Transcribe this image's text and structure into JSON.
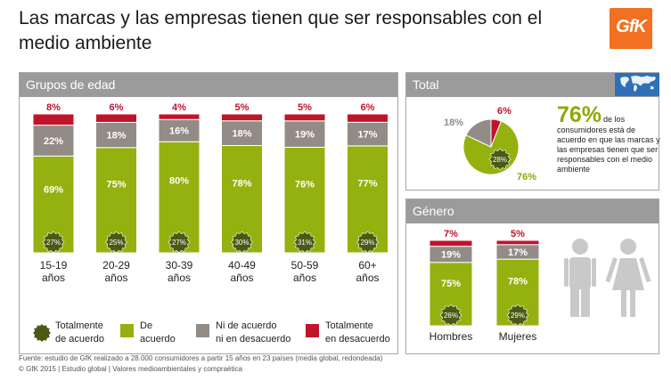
{
  "title": "Las marcas y las empresas tienen que ser responsables con el medio ambiente",
  "logo_text": "GfK",
  "panels": {
    "age": "Grupos de edad",
    "total": "Total",
    "gender": "Género"
  },
  "total_text": {
    "value": "76%",
    "description": "de los consumidores está de acuerdo en que las marcas y las empresas tienen que ser responsables con el medio ambiente"
  },
  "legend": [
    {
      "label": "Totalmente de acuerdo",
      "color": "#4a5a14",
      "shape": "badge"
    },
    {
      "label": "De acuerdo",
      "color": "#95b10f",
      "shape": "square"
    },
    {
      "label": "Ni de acuerdo ni en desacuerdo",
      "color": "#928b86",
      "shape": "square"
    },
    {
      "label": "Totalmente en desacuerdo",
      "color": "#c0142b",
      "shape": "square"
    }
  ],
  "footer": {
    "source": "Fuente: estudio de GfK realizado a 28.000 consumidores a partir 15 años en 23 países (media global, redondeada)",
    "copyright": "© GfK 2015 | Estudio global | Valores medioambientales y compraética"
  },
  "colors": {
    "agree": "#95b10f",
    "neutral": "#928b86",
    "disagree": "#c0142b",
    "strong": "#4a5a14",
    "header": "#9b9b9b",
    "accent": "#8bab06"
  },
  "chart_data": [
    {
      "type": "bar",
      "stacked": true,
      "categories": [
        "15-19 años",
        "20-29 años",
        "30-39 años",
        "40-49 años",
        "50-59 años",
        "60+ años"
      ],
      "series": [
        {
          "name": "De acuerdo",
          "values": [
            69,
            75,
            80,
            78,
            76,
            77
          ],
          "labels": [
            "69%",
            "75%",
            "80%",
            "78%",
            "76%",
            "77%"
          ]
        },
        {
          "name": "Ni de acuerdo ni en desacuerdo",
          "values": [
            22,
            18,
            16,
            18,
            19,
            17
          ],
          "labels": [
            "22%",
            "18%",
            "16%",
            "18%",
            "19%",
            "17%"
          ]
        },
        {
          "name": "Totalmente en desacuerdo",
          "values": [
            8,
            6,
            4,
            5,
            5,
            6
          ],
          "labels": [
            "8%",
            "6%",
            "4%",
            "5%",
            "5%",
            "6%"
          ]
        }
      ],
      "strongly_agree": {
        "name": "Totalmente de acuerdo",
        "values": [
          27,
          25,
          27,
          30,
          31,
          29
        ],
        "labels": [
          "27%",
          "25%",
          "27%",
          "30%",
          "31%",
          "29%"
        ]
      }
    },
    {
      "type": "pie",
      "slices": [
        {
          "name": "De acuerdo",
          "value": 76,
          "label": "76%"
        },
        {
          "name": "Ni de acuerdo ni en desacuerdo",
          "value": 18,
          "label": "18%"
        },
        {
          "name": "Totalmente en desacuerdo",
          "value": 6,
          "label": "6%"
        }
      ],
      "strongly_agree": {
        "value": 28,
        "label": "28%"
      }
    },
    {
      "type": "bar",
      "stacked": true,
      "categories": [
        "Hombres",
        "Mujeres"
      ],
      "series": [
        {
          "name": "De acuerdo",
          "values": [
            75,
            78
          ],
          "labels": [
            "75%",
            "78%"
          ]
        },
        {
          "name": "Ni de acuerdo ni en desacuerdo",
          "values": [
            19,
            17
          ],
          "labels": [
            "19%",
            "17%"
          ]
        },
        {
          "name": "Totalmente en desacuerdo",
          "values": [
            7,
            5
          ],
          "labels": [
            "7%",
            "5%"
          ]
        }
      ],
      "strongly_agree": {
        "values": [
          26,
          29
        ],
        "labels": [
          "26%",
          "29%"
        ]
      }
    }
  ]
}
